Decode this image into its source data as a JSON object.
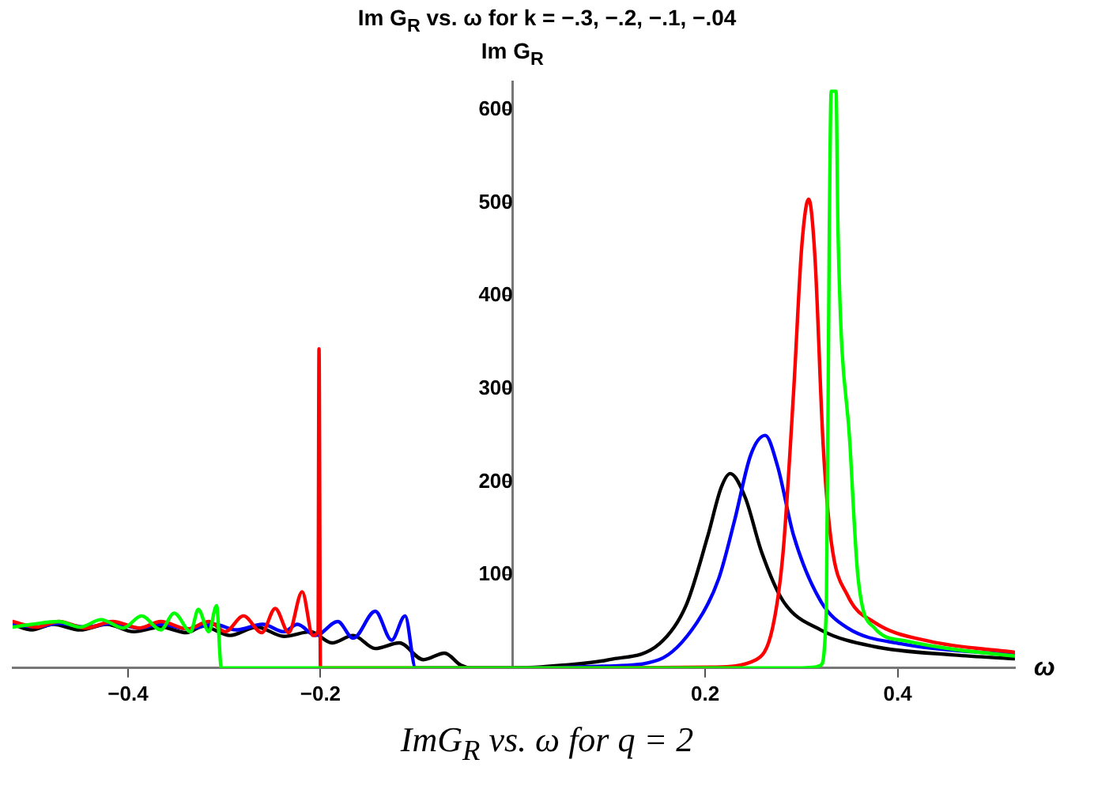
{
  "chart_data": {
    "type": "line",
    "title": "Im G$_{R}$ vs. ω for k = −.3, −.2, −.1, −.04",
    "ylabel": "Im G$_{R}$",
    "xlabel": "ω",
    "annotations": [
      "ImG$_{R}$ vs. ω for q = 2"
    ],
    "xlim": [
      -0.52,
      0.522
    ],
    "ylim": [
      0,
      630
    ],
    "xticks": [
      -0.4,
      -0.2,
      0.2,
      0.4
    ],
    "yticks": [
      100,
      200,
      300,
      400,
      500,
      600
    ],
    "grid": false,
    "legend": false,
    "marker": "none",
    "line_style": "solid",
    "series": [
      {
        "color": "#00ff00",
        "x": [
          -0.52,
          -0.5,
          -0.472,
          -0.45,
          -0.428,
          -0.405,
          -0.386,
          -0.366,
          -0.352,
          -0.335,
          -0.327,
          -0.316,
          -0.308,
          -0.303,
          -0.29,
          0,
          0.3,
          0.314,
          0.32,
          0.326,
          0.329,
          0.331,
          0.336,
          0.338,
          0.3505,
          0.359,
          0.376,
          0.409,
          0.459,
          0.521
        ],
        "values": [
          44,
          47,
          50,
          44,
          52,
          43,
          56,
          41,
          59,
          39,
          63,
          39,
          67,
          0,
          0,
          0,
          0,
          1,
          3,
          67,
          472,
          620,
          620,
          472,
          240,
          96,
          43,
          29,
          20,
          13
        ]
      },
      {
        "color": "#ff0000",
        "x": [
          -0.52,
          -0.495,
          -0.472,
          -0.444,
          -0.416,
          -0.388,
          -0.366,
          -0.338,
          -0.316,
          -0.299,
          -0.28,
          -0.261,
          -0.247,
          -0.233,
          -0.219,
          -0.208,
          -0.2025,
          -0.2015,
          -0.2,
          -0.19,
          0,
          0.1,
          0.208,
          0.253,
          0.27,
          0.281,
          0.292,
          0.3005,
          0.3076,
          0.314,
          0.3226,
          0.331,
          0.348,
          0.376,
          0.432,
          0.521
        ],
        "values": [
          50,
          44,
          50,
          43,
          50,
          43,
          50,
          42,
          50,
          39,
          56,
          38,
          64,
          38,
          82,
          35,
          40,
          343,
          0,
          0,
          0,
          0,
          1,
          9,
          43,
          125,
          299,
          455,
          504,
          443,
          240,
          136,
          78,
          49,
          29,
          17
        ]
      },
      {
        "color": "#0000ff",
        "x": [
          -0.52,
          -0.495,
          -0.472,
          -0.444,
          -0.416,
          -0.388,
          -0.366,
          -0.338,
          -0.31,
          -0.288,
          -0.26,
          -0.238,
          -0.224,
          -0.205,
          -0.182,
          -0.166,
          -0.143,
          -0.126,
          -0.112,
          -0.101,
          -0.08,
          0,
          0.0967,
          0.152,
          0.1915,
          0.214,
          0.2306,
          0.2473,
          0.2624,
          0.2752,
          0.292,
          0.32,
          0.348,
          0.4037,
          0.521
        ],
        "values": [
          47,
          44,
          48,
          44,
          48,
          43,
          47,
          42,
          47,
          41,
          47,
          39,
          47,
          35,
          50,
          32,
          61,
          30,
          56,
          0,
          0,
          0,
          2,
          9,
          49,
          96,
          159,
          229,
          250,
          217,
          142,
          72,
          43,
          26,
          14
        ]
      },
      {
        "color": "#000000",
        "x": [
          -0.52,
          -0.5,
          -0.478,
          -0.45,
          -0.422,
          -0.394,
          -0.366,
          -0.339,
          -0.322,
          -0.294,
          -0.266,
          -0.238,
          -0.21,
          -0.188,
          -0.166,
          -0.143,
          -0.118,
          -0.093,
          -0.071,
          -0.054,
          -0.043,
          0,
          0.052,
          0.1005,
          0.1524,
          0.18,
          0.2027,
          0.2166,
          0.226,
          0.2417,
          0.2585,
          0.281,
          0.32,
          0.376,
          0.459,
          0.521
        ],
        "values": [
          47,
          41,
          47,
          41,
          47,
          39,
          44,
          38,
          45,
          35,
          44,
          34,
          39,
          27,
          35,
          21,
          27,
          9,
          16,
          3,
          0,
          0,
          3,
          9,
          26,
          67,
          142,
          194,
          209,
          183,
          125,
          72,
          41,
          23,
          14,
          10
        ]
      }
    ]
  }
}
